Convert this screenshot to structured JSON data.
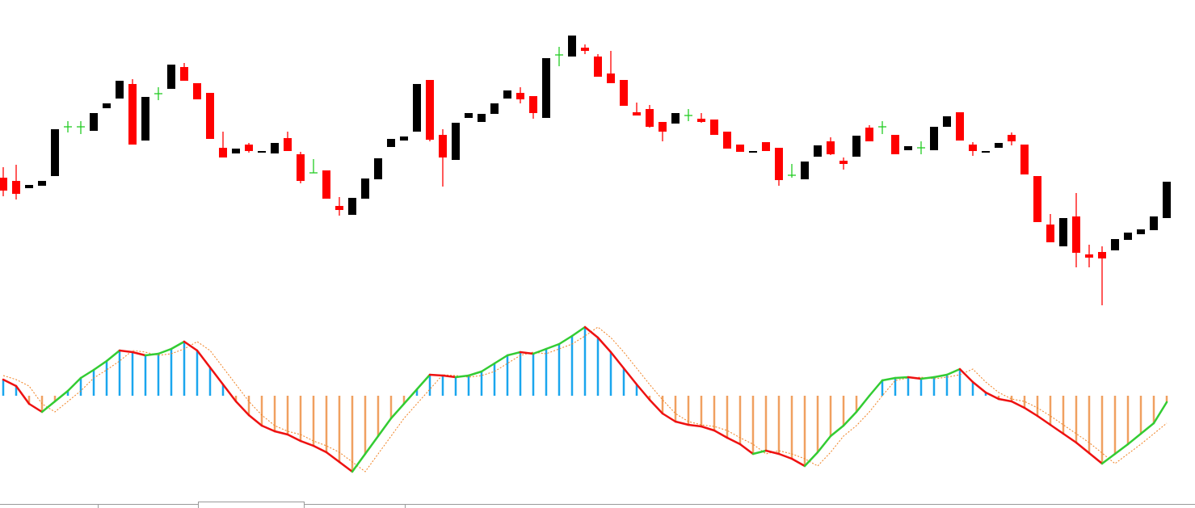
{
  "chart_data": [
    {
      "type": "candlestick",
      "up_color": "#000000",
      "down_color": "#ff0000",
      "doji_color": "#22cc22",
      "ylim": [
        0,
        400
      ],
      "open": [
        180,
        176,
        167,
        170,
        182,
        243,
        243,
        238,
        266,
        278,
        296,
        226,
        284,
        290,
        317,
        297,
        285,
        217,
        210,
        221,
        211,
        210,
        229,
        209,
        186,
        189,
        145,
        134,
        154,
        178,
        218,
        226,
        237,
        301,
        233,
        202,
        254,
        249,
        259,
        278,
        285,
        281,
        254,
        332,
        330,
        341,
        330,
        309,
        301,
        261,
        265,
        249,
        247,
        257,
        253,
        252,
        237,
        221,
        211,
        224,
        217,
        183,
        178,
        206,
        225,
        201,
        206,
        242,
        243,
        233,
        214,
        217,
        214,
        243,
        261,
        221,
        211,
        217,
        233,
        221,
        182,
        122,
        95,
        132,
        85,
        88,
        90,
        103,
        110,
        115,
        130
      ],
      "high": [
        193,
        196,
        171,
        176,
        240,
        250,
        250,
        260,
        272,
        300,
        302,
        280,
        292,
        320,
        322,
        297,
        285,
        237,
        216,
        223,
        213,
        223,
        237,
        212,
        203,
        189,
        156,
        155,
        179,
        204,
        228,
        231,
        296,
        301,
        240,
        248,
        260,
        259,
        272,
        288,
        292,
        281,
        328,
        342,
        356,
        345,
        333,
        337,
        301,
        273,
        270,
        249,
        260,
        265,
        260,
        252,
        237,
        221,
        213,
        224,
        217,
        197,
        200,
        220,
        230,
        205,
        232,
        245,
        250,
        233,
        219,
        225,
        243,
        256,
        261,
        224,
        213,
        223,
        236,
        221,
        182,
        135,
        130,
        161,
        97,
        95,
        104,
        112,
        116,
        132,
        175
      ],
      "low": [
        157,
        153,
        167,
        170,
        182,
        236,
        234,
        238,
        266,
        278,
        221,
        226,
        276,
        290,
        300,
        277,
        228,
        205,
        210,
        211,
        211,
        210,
        213,
        173,
        186,
        154,
        133,
        134,
        154,
        178,
        218,
        226,
        237,
        225,
        169,
        202,
        254,
        249,
        259,
        278,
        272,
        253,
        254,
        318,
        330,
        333,
        305,
        297,
        269,
        257,
        242,
        225,
        247,
        250,
        248,
        233,
        216,
        212,
        211,
        213,
        170,
        180,
        178,
        206,
        208,
        190,
        206,
        225,
        234,
        209,
        214,
        209,
        214,
        243,
        226,
        207,
        211,
        217,
        220,
        184,
        125,
        100,
        95,
        69,
        69,
        22,
        90,
        103,
        110,
        115,
        130
      ],
      "close": [
        164,
        160,
        171,
        176,
        240,
        243,
        243,
        260,
        272,
        300,
        221,
        280,
        284,
        320,
        300,
        277,
        228,
        205,
        216,
        213,
        213,
        223,
        213,
        176,
        186,
        154,
        140,
        155,
        179,
        204,
        228,
        231,
        296,
        227,
        205,
        248,
        260,
        259,
        272,
        288,
        277,
        260,
        328,
        332,
        356,
        337,
        305,
        297,
        269,
        257,
        243,
        237,
        260,
        257,
        249,
        233,
        216,
        212,
        213,
        213,
        177,
        183,
        200,
        220,
        209,
        197,
        232,
        225,
        243,
        209,
        219,
        217,
        243,
        256,
        226,
        213,
        213,
        223,
        225,
        184,
        125,
        100,
        130,
        87,
        81,
        80,
        104,
        112,
        116,
        132,
        175
      ]
    },
    {
      "type": "oscillator",
      "positive_color": "#1aa6ee",
      "negative_color": "#f0a060",
      "rise_color": "#33cc33",
      "fall_color": "#ee1111",
      "signal_color": "#f08020",
      "ylim": [
        -110,
        100
      ],
      "histogram": [
        20,
        12,
        -10,
        -20,
        -7,
        6,
        22,
        32,
        43,
        56,
        54,
        50,
        52,
        58,
        67,
        56,
        35,
        14,
        -7,
        -24,
        -37,
        -44,
        -48,
        -56,
        -62,
        -70,
        -82,
        -94,
        -72,
        -50,
        -28,
        -10,
        8,
        26,
        25,
        23,
        25,
        30,
        40,
        50,
        54,
        52,
        58,
        64,
        74,
        85,
        72,
        54,
        34,
        14,
        -5,
        -22,
        -32,
        -36,
        -38,
        -43,
        -52,
        -60,
        -72,
        -68,
        -72,
        -78,
        -87,
        -70,
        -50,
        -37,
        -20,
        0,
        19,
        22,
        23,
        21,
        23,
        26,
        33,
        17,
        4,
        -4,
        -7,
        -15,
        -25,
        -36,
        -47,
        -58,
        -71,
        -84,
        -72,
        -60,
        -47,
        -34,
        -8
      ],
      "main": [
        20,
        12,
        -10,
        -20,
        -7,
        6,
        22,
        32,
        43,
        56,
        54,
        50,
        52,
        58,
        67,
        56,
        35,
        14,
        -7,
        -24,
        -37,
        -44,
        -48,
        -56,
        -62,
        -70,
        -82,
        -94,
        -72,
        -50,
        -28,
        -10,
        8,
        26,
        25,
        23,
        25,
        30,
        40,
        50,
        54,
        52,
        58,
        64,
        74,
        85,
        72,
        54,
        34,
        14,
        -5,
        -22,
        -32,
        -36,
        -38,
        -43,
        -52,
        -60,
        -72,
        -68,
        -72,
        -78,
        -87,
        -70,
        -50,
        -37,
        -20,
        0,
        19,
        22,
        23,
        21,
        23,
        26,
        33,
        17,
        4,
        -4,
        -7,
        -15,
        -25,
        -36,
        -47,
        -58,
        -71,
        -84,
        -72,
        -60,
        -47,
        -34,
        -8
      ],
      "signal": [
        25,
        20,
        12,
        -10,
        -20,
        -7,
        6,
        22,
        32,
        43,
        56,
        54,
        50,
        52,
        58,
        67,
        56,
        35,
        14,
        -7,
        -24,
        -37,
        -44,
        -48,
        -56,
        -62,
        -70,
        -82,
        -94,
        -72,
        -50,
        -28,
        -10,
        8,
        26,
        25,
        23,
        25,
        30,
        40,
        50,
        54,
        52,
        58,
        64,
        74,
        85,
        72,
        54,
        34,
        14,
        -5,
        -22,
        -32,
        -36,
        -38,
        -43,
        -52,
        -60,
        -72,
        -68,
        -72,
        -78,
        -87,
        -70,
        -50,
        -37,
        -20,
        0,
        19,
        22,
        23,
        21,
        23,
        26,
        33,
        17,
        4,
        -4,
        -7,
        -15,
        -25,
        -36,
        -47,
        -58,
        -71,
        -84,
        -72,
        -60,
        -47,
        -34
      ]
    }
  ]
}
